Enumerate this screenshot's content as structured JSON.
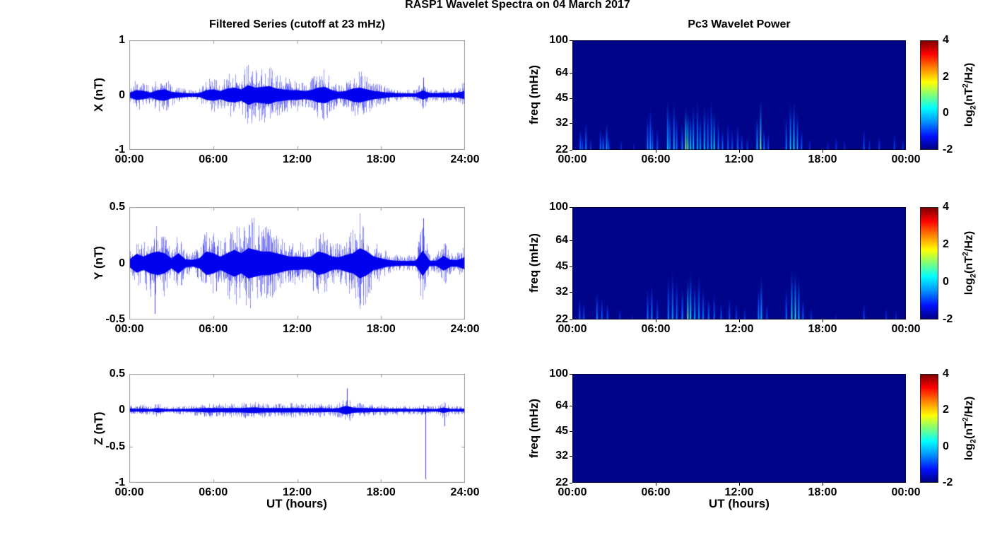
{
  "figure": {
    "suptitle": "RASP1 Wavelet Spectra on 04 March 2017",
    "background": "#ffffff"
  },
  "chart_data": [
    {
      "type": "line",
      "title": "Filtered Series (cutoff at 23 mHz)",
      "xlabel": "UT (hours)",
      "x_hours_range": [
        0,
        24
      ],
      "xtick_labels": [
        "00:00",
        "06:00",
        "12:00",
        "18:00",
        "24:00"
      ],
      "line_color": "#0000ee",
      "grid": "off",
      "panels": [
        {
          "ylabel": "X (nT)",
          "ylim": [
            -1,
            1
          ],
          "yticks": [
            1,
            0,
            -1
          ],
          "envelope_dt_hours": 0.5,
          "envelope_nT": [
            0.15,
            0.3,
            0.25,
            0.15,
            0.3,
            0.35,
            0.2,
            0.15,
            0.12,
            0.1,
            0.12,
            0.3,
            0.35,
            0.25,
            0.4,
            0.45,
            0.35,
            0.6,
            0.45,
            0.5,
            0.55,
            0.4,
            0.35,
            0.3,
            0.3,
            0.25,
            0.3,
            0.45,
            0.5,
            0.3,
            0.2,
            0.25,
            0.4,
            0.45,
            0.35,
            0.25,
            0.2,
            0.15,
            0.12,
            0.1,
            0.1,
            0.1,
            0.28,
            0.12,
            0.12,
            0.15,
            0.12,
            0.15,
            0.25
          ],
          "spikes": [
            {
              "t": 21.05,
              "v": 0.32
            }
          ]
        },
        {
          "ylabel": "Y (nT)",
          "ylim": [
            -0.5,
            0.5
          ],
          "yticks": [
            0.5,
            0,
            -0.5
          ],
          "envelope_dt_hours": 0.5,
          "envelope_nT": [
            0.12,
            0.28,
            0.2,
            0.3,
            0.35,
            0.3,
            0.15,
            0.3,
            0.12,
            0.1,
            0.15,
            0.35,
            0.3,
            0.2,
            0.3,
            0.4,
            0.3,
            0.45,
            0.4,
            0.35,
            0.35,
            0.3,
            0.25,
            0.2,
            0.2,
            0.18,
            0.2,
            0.35,
            0.3,
            0.2,
            0.18,
            0.25,
            0.3,
            0.45,
            0.35,
            0.2,
            0.15,
            0.1,
            0.08,
            0.07,
            0.07,
            0.08,
            0.38,
            0.08,
            0.08,
            0.22,
            0.1,
            0.1,
            0.18
          ],
          "spikes": [
            {
              "t": 1.8,
              "v": -0.45
            },
            {
              "t": 21.05,
              "v": 0.4
            }
          ]
        },
        {
          "ylabel": "Z (nT)",
          "ylim": [
            -1,
            0.5
          ],
          "yticks": [
            0.5,
            0,
            -0.5,
            -1
          ],
          "envelope_dt_hours": 0.5,
          "envelope_nT": [
            0.08,
            0.06,
            0.08,
            0.05,
            0.1,
            0.06,
            0.05,
            0.06,
            0.06,
            0.07,
            0.08,
            0.1,
            0.1,
            0.09,
            0.1,
            0.1,
            0.1,
            0.12,
            0.13,
            0.1,
            0.1,
            0.1,
            0.1,
            0.1,
            0.1,
            0.09,
            0.09,
            0.1,
            0.09,
            0.08,
            0.1,
            0.2,
            0.12,
            0.1,
            0.1,
            0.08,
            0.08,
            0.07,
            0.07,
            0.07,
            0.06,
            0.06,
            0.08,
            0.06,
            0.06,
            0.12,
            0.06,
            0.06,
            0.07
          ],
          "spikes": [
            {
              "t": 15.6,
              "v": 0.3
            },
            {
              "t": 21.2,
              "v": -0.95
            },
            {
              "t": 22.6,
              "v": -0.22
            }
          ]
        }
      ]
    },
    {
      "type": "heatmap",
      "title": "Pc3 Wavelet Power",
      "xlabel": "UT (hours)",
      "ylabel": "freq (mHz)",
      "xtick_labels": [
        "00:00",
        "06:00",
        "12:00",
        "18:00",
        "00:00"
      ],
      "x_hours_range": [
        0,
        24
      ],
      "freq_lim_mHz": [
        22,
        100
      ],
      "freq_scale": "log",
      "yticks": [
        100,
        64,
        45,
        32,
        22
      ],
      "background_color": "#000489",
      "colorbar": {
        "range": [
          -2,
          4
        ],
        "ticks": [
          4,
          2,
          0,
          -2
        ],
        "label_parts": {
          "prefix": "log",
          "sub": "2",
          "mid": "(nT",
          "sup": "2",
          "suffix": "/Hz)"
        }
      },
      "panels": [
        {
          "component": "X",
          "streaks": [
            [
              0.55,
              30,
              0.45
            ],
            [
              0.7,
              27,
              0.35
            ],
            [
              0.95,
              33,
              0.5
            ],
            [
              1.3,
              26,
              0.3
            ],
            [
              2.0,
              30,
              0.45
            ],
            [
              2.2,
              28,
              0.5
            ],
            [
              2.45,
              33,
              0.55
            ],
            [
              2.6,
              27,
              0.4
            ],
            [
              3.5,
              26,
              0.2
            ],
            [
              4.4,
              25,
              0.15
            ],
            [
              5.4,
              36,
              0.5
            ],
            [
              5.6,
              40,
              0.55
            ],
            [
              5.75,
              32,
              0.4
            ],
            [
              6.1,
              30,
              0.35
            ],
            [
              6.85,
              45,
              0.65
            ],
            [
              7.0,
              38,
              0.5
            ],
            [
              7.3,
              43,
              0.6
            ],
            [
              7.5,
              36,
              0.45
            ],
            [
              7.9,
              32,
              0.5
            ],
            [
              8.15,
              40,
              0.95
            ],
            [
              8.3,
              38,
              0.8
            ],
            [
              8.5,
              36,
              0.7
            ],
            [
              8.7,
              42,
              0.6
            ],
            [
              9.0,
              44,
              0.6
            ],
            [
              9.2,
              36,
              0.55
            ],
            [
              9.5,
              42,
              0.65
            ],
            [
              9.75,
              40,
              0.5
            ],
            [
              10.0,
              45,
              0.6
            ],
            [
              10.2,
              38,
              0.7
            ],
            [
              10.5,
              34,
              0.5
            ],
            [
              10.8,
              30,
              0.45
            ],
            [
              11.2,
              33,
              0.4
            ],
            [
              11.5,
              30,
              0.35
            ],
            [
              11.9,
              32,
              0.45
            ],
            [
              12.2,
              28,
              0.35
            ],
            [
              12.6,
              26,
              0.3
            ],
            [
              13.3,
              36,
              0.6
            ],
            [
              13.55,
              45,
              0.85
            ],
            [
              13.8,
              30,
              0.5
            ],
            [
              14.1,
              28,
              0.35
            ],
            [
              15.4,
              36,
              0.5
            ],
            [
              15.7,
              43,
              0.65
            ],
            [
              15.95,
              44,
              0.7
            ],
            [
              16.2,
              38,
              0.55
            ],
            [
              16.5,
              30,
              0.4
            ],
            [
              17.1,
              26,
              0.25
            ],
            [
              18.4,
              25,
              0.2
            ],
            [
              19.0,
              27,
              0.25
            ],
            [
              19.6,
              26,
              0.2
            ],
            [
              21.0,
              30,
              0.35
            ],
            [
              21.4,
              26,
              0.25
            ],
            [
              22.1,
              27,
              0.3
            ],
            [
              23.2,
              28,
              0.3
            ],
            [
              23.8,
              26,
              0.25
            ]
          ]
        },
        {
          "component": "Y",
          "streaks": [
            [
              0.5,
              30,
              0.4
            ],
            [
              0.8,
              28,
              0.35
            ],
            [
              1.75,
              32,
              0.5
            ],
            [
              2.1,
              30,
              0.4
            ],
            [
              2.5,
              28,
              0.35
            ],
            [
              3.4,
              26,
              0.25
            ],
            [
              4.3,
              24,
              0.15
            ],
            [
              5.4,
              34,
              0.45
            ],
            [
              5.7,
              36,
              0.5
            ],
            [
              6.1,
              30,
              0.35
            ],
            [
              6.9,
              40,
              0.5
            ],
            [
              7.2,
              43,
              0.55
            ],
            [
              7.5,
              38,
              0.45
            ],
            [
              7.9,
              34,
              0.5
            ],
            [
              8.3,
              38,
              0.85
            ],
            [
              8.5,
              42,
              0.7
            ],
            [
              8.8,
              36,
              0.6
            ],
            [
              9.1,
              40,
              0.55
            ],
            [
              9.4,
              34,
              0.5
            ],
            [
              9.8,
              30,
              0.45
            ],
            [
              10.2,
              32,
              0.4
            ],
            [
              10.7,
              28,
              0.35
            ],
            [
              11.3,
              30,
              0.35
            ],
            [
              11.8,
              28,
              0.3
            ],
            [
              12.4,
              26,
              0.25
            ],
            [
              13.4,
              34,
              0.5
            ],
            [
              13.6,
              40,
              0.6
            ],
            [
              14.0,
              28,
              0.3
            ],
            [
              15.4,
              34,
              0.45
            ],
            [
              15.8,
              44,
              0.7
            ],
            [
              16.05,
              43,
              0.75
            ],
            [
              16.3,
              40,
              0.6
            ],
            [
              16.6,
              30,
              0.4
            ],
            [
              17.2,
              26,
              0.25
            ],
            [
              19.0,
              24,
              0.15
            ],
            [
              21.0,
              28,
              0.3
            ],
            [
              22.6,
              26,
              0.25
            ],
            [
              23.3,
              25,
              0.2
            ]
          ]
        },
        {
          "component": "Z",
          "streaks": []
        }
      ]
    }
  ]
}
